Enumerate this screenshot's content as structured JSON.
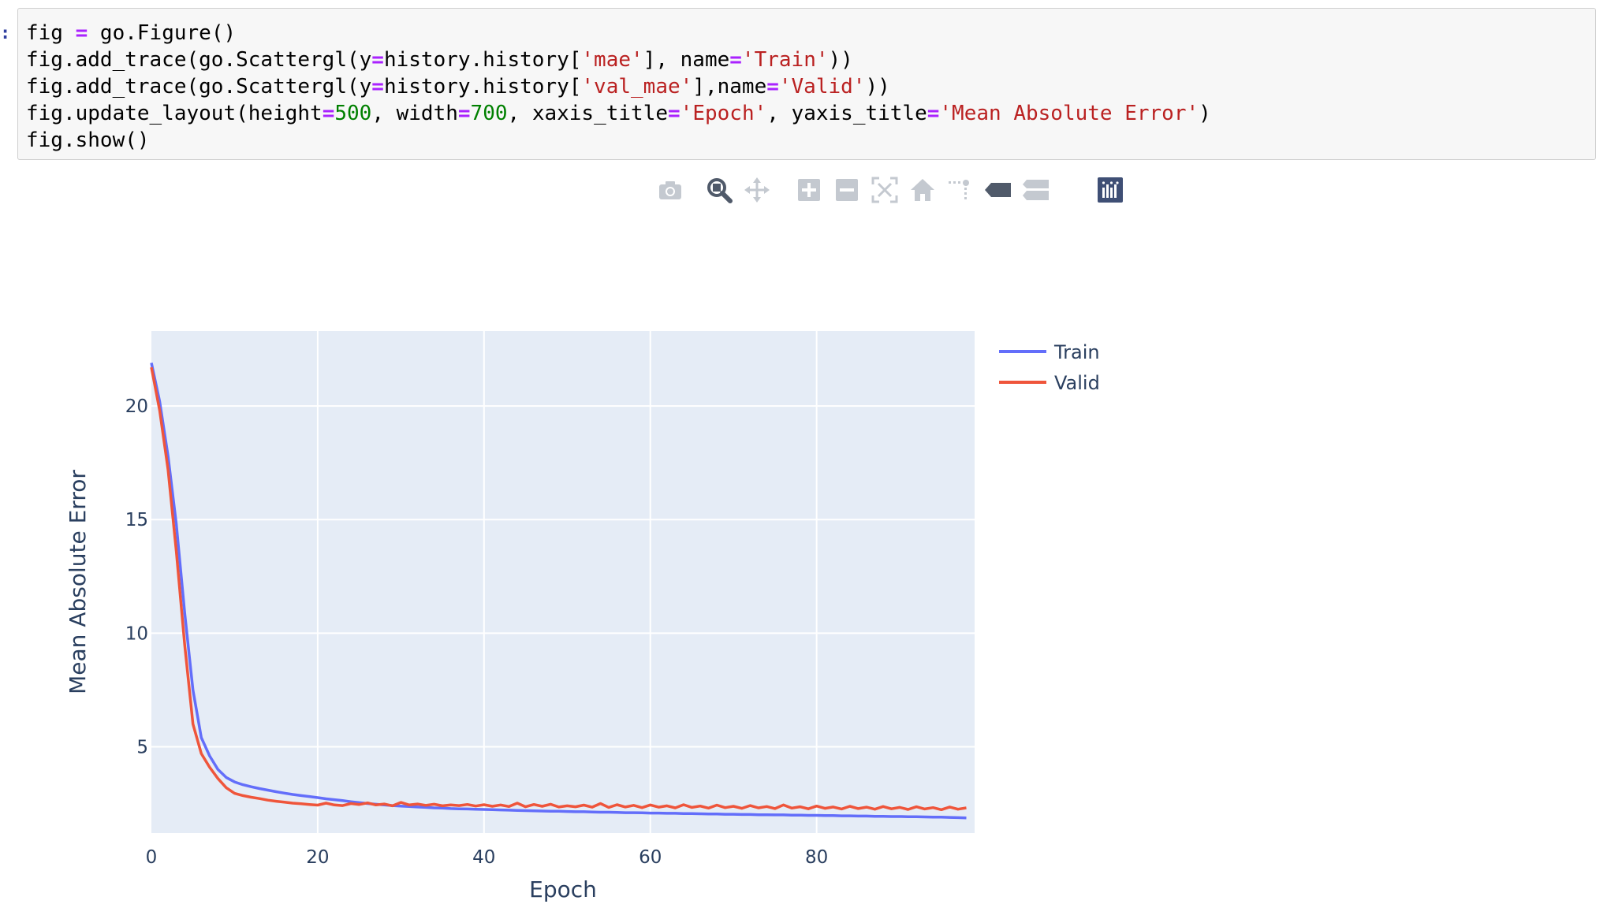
{
  "notebook": {
    "prompt_marker": ":",
    "code_lines": [
      [
        {
          "t": "fig "
        },
        {
          "t": "=",
          "c": "op"
        },
        {
          "t": " go.Figure()"
        }
      ],
      [
        {
          "t": "fig.add_trace(go.Scattergl(y"
        },
        {
          "t": "=",
          "c": "op"
        },
        {
          "t": "history.history["
        },
        {
          "t": "'mae'",
          "c": "str"
        },
        {
          "t": "], name"
        },
        {
          "t": "=",
          "c": "op"
        },
        {
          "t": "'Train'",
          "c": "str"
        },
        {
          "t": "))"
        }
      ],
      [
        {
          "t": "fig.add_trace(go.Scattergl(y"
        },
        {
          "t": "=",
          "c": "op"
        },
        {
          "t": "history.history["
        },
        {
          "t": "'val_mae'",
          "c": "str"
        },
        {
          "t": "],name"
        },
        {
          "t": "=",
          "c": "op"
        },
        {
          "t": "'Valid'",
          "c": "str"
        },
        {
          "t": "))"
        }
      ],
      [
        {
          "t": "fig.update_layout(height"
        },
        {
          "t": "=",
          "c": "op"
        },
        {
          "t": "500",
          "c": "num"
        },
        {
          "t": ", width"
        },
        {
          "t": "=",
          "c": "op"
        },
        {
          "t": "700",
          "c": "num"
        },
        {
          "t": ", xaxis_title"
        },
        {
          "t": "=",
          "c": "op"
        },
        {
          "t": "'Epoch'",
          "c": "str"
        },
        {
          "t": ", yaxis_title"
        },
        {
          "t": "=",
          "c": "op"
        },
        {
          "t": "'Mean Absolute Error'",
          "c": "str"
        },
        {
          "t": ")"
        }
      ],
      [
        {
          "t": "fig.show()"
        }
      ]
    ]
  },
  "modebar": {
    "buttons": [
      "camera-icon",
      "zoom-icon",
      "pan-icon",
      "zoom-in-icon",
      "zoom-out-icon",
      "autoscale-icon",
      "reset-axes-icon",
      "spike-lines-icon",
      "hover-closest-icon",
      "hover-compare-icon",
      "plotly-logo-icon"
    ],
    "active": "zoom-icon",
    "colors": {
      "inactive": "#c4c9d0",
      "active": "#505a6a",
      "logo_bg": "#3f4f75"
    }
  },
  "chart_data": {
    "type": "line",
    "title": "",
    "xlabel": "Epoch",
    "ylabel": "Mean Absolute Error",
    "xlim": [
      0,
      99
    ],
    "ylim": [
      1.2,
      23.3
    ],
    "xticks": [
      0,
      20,
      40,
      60,
      80
    ],
    "yticks": [
      5,
      10,
      15,
      20
    ],
    "grid": true,
    "legend_position": "top-right, outside plot",
    "plot_bg": "#e5ecf6",
    "series": [
      {
        "name": "Train",
        "color": "#636efa",
        "values": [
          21.9,
          20.2,
          17.8,
          14.8,
          10.9,
          7.5,
          5.4,
          4.6,
          4.0,
          3.65,
          3.45,
          3.33,
          3.24,
          3.16,
          3.09,
          3.02,
          2.96,
          2.9,
          2.85,
          2.81,
          2.76,
          2.71,
          2.67,
          2.63,
          2.58,
          2.54,
          2.5,
          2.47,
          2.44,
          2.41,
          2.39,
          2.37,
          2.35,
          2.33,
          2.31,
          2.3,
          2.28,
          2.27,
          2.26,
          2.25,
          2.24,
          2.23,
          2.22,
          2.21,
          2.2,
          2.19,
          2.18,
          2.17,
          2.16,
          2.16,
          2.15,
          2.14,
          2.14,
          2.13,
          2.12,
          2.12,
          2.11,
          2.1,
          2.1,
          2.09,
          2.08,
          2.08,
          2.07,
          2.07,
          2.06,
          2.06,
          2.05,
          2.04,
          2.04,
          2.03,
          2.03,
          2.02,
          2.02,
          2.01,
          2.01,
          2.0,
          2.0,
          1.99,
          1.99,
          1.98,
          1.98,
          1.97,
          1.97,
          1.96,
          1.96,
          1.95,
          1.95,
          1.94,
          1.94,
          1.93,
          1.93,
          1.92,
          1.92,
          1.91,
          1.9,
          1.9,
          1.89,
          1.88,
          1.87
        ]
      },
      {
        "name": "Valid",
        "color": "#ef553b",
        "values": [
          21.7,
          19.8,
          17.2,
          13.6,
          9.5,
          6.0,
          4.7,
          4.1,
          3.6,
          3.2,
          2.95,
          2.85,
          2.78,
          2.72,
          2.65,
          2.6,
          2.56,
          2.52,
          2.49,
          2.46,
          2.43,
          2.52,
          2.44,
          2.41,
          2.5,
          2.46,
          2.53,
          2.44,
          2.48,
          2.4,
          2.55,
          2.44,
          2.48,
          2.42,
          2.47,
          2.4,
          2.44,
          2.41,
          2.46,
          2.39,
          2.45,
          2.38,
          2.44,
          2.37,
          2.52,
          2.36,
          2.46,
          2.38,
          2.47,
          2.35,
          2.4,
          2.36,
          2.43,
          2.34,
          2.5,
          2.33,
          2.45,
          2.35,
          2.42,
          2.32,
          2.44,
          2.34,
          2.4,
          2.31,
          2.45,
          2.33,
          2.39,
          2.3,
          2.43,
          2.32,
          2.38,
          2.29,
          2.41,
          2.31,
          2.37,
          2.28,
          2.44,
          2.3,
          2.36,
          2.27,
          2.39,
          2.29,
          2.35,
          2.26,
          2.38,
          2.28,
          2.34,
          2.25,
          2.37,
          2.27,
          2.33,
          2.24,
          2.36,
          2.26,
          2.32,
          2.23,
          2.35,
          2.25,
          2.31
        ]
      }
    ]
  }
}
